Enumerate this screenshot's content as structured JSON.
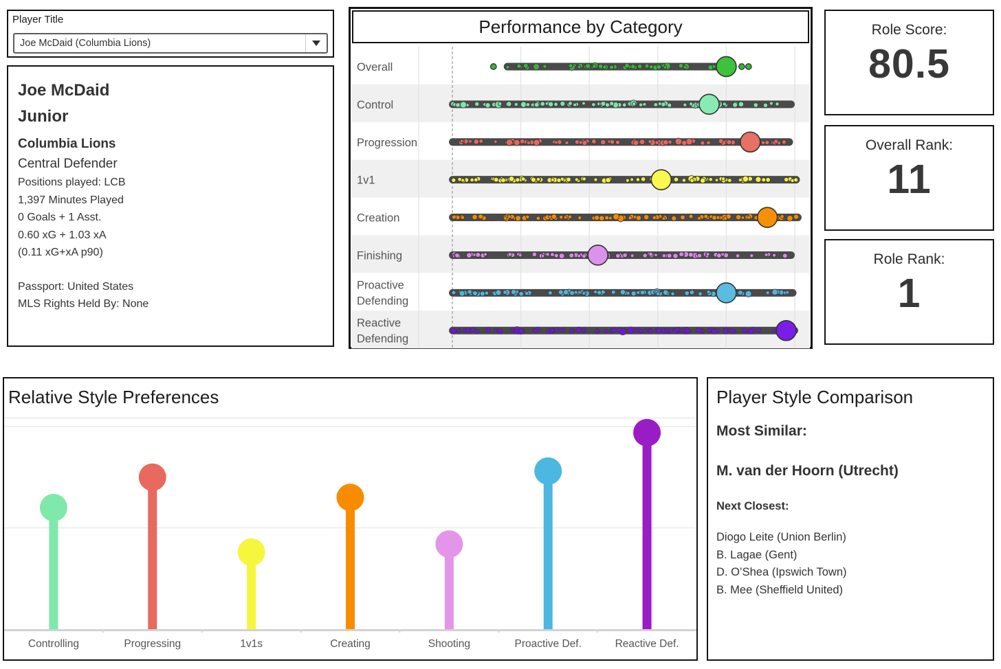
{
  "filter": {
    "label": "Player Title",
    "value": "Joe McDaid (Columbia Lions)"
  },
  "player": {
    "name_line1": "Joe McDaid",
    "name_line2": "Junior",
    "team": "Columbia Lions",
    "role": "Central Defender",
    "details": [
      "Positions played: LCB",
      "1,397 Minutes Played",
      "0 Goals + 1 Asst.",
      "0.60 xG + 1.03 xA",
      "(0.11 xG+xA p90)"
    ],
    "extra": [
      "Passport: United States",
      "MLS Rights Held By: None"
    ]
  },
  "kpis": [
    {
      "label": "Role Score:",
      "value": "80.5"
    },
    {
      "label": "Overall Rank:",
      "value": "11"
    },
    {
      "label": "Role Rank:",
      "value": "1"
    }
  ],
  "style_comparison": {
    "title": "Player Style Comparison",
    "most_similar_label": "Most Similar:",
    "most_similar": "M. van der Hoorn (Utrecht)",
    "next_label": "Next Closest:",
    "next_list": [
      "Diogo Leite (Union Berlin)",
      "B. Lagae (Gent)",
      "D. O’Shea (Ipswich Town)",
      "B. Mee (Sheffield United)"
    ]
  },
  "chart_data": [
    {
      "id": "performance",
      "type": "strip",
      "title": "Performance by Category",
      "axis": {
        "min": 0,
        "max": 100,
        "gridline_step": 20,
        "reference_line_value": 0,
        "reference_line_style": "dashed",
        "tick_labels_visible": false
      },
      "legend": "large dot = selected player score, small dots = all players distribution",
      "rows": [
        {
          "label_lines": [
            "Overall"
          ],
          "dot_color": "#3ab43a",
          "player_color": "#3cc23c",
          "player_value": 80,
          "strip_min": 16,
          "strip_max": 77.5,
          "outliers": [
            12,
            84.5,
            86.5
          ],
          "dot_count": 55
        },
        {
          "label_lines": [
            "Control"
          ],
          "dot_color": "#7fe3a8",
          "player_color": "#88ebb1",
          "player_value": 75,
          "strip_min": 0,
          "strip_max": 99,
          "outliers": [],
          "dot_count": 92
        },
        {
          "label_lines": [
            "Progression"
          ],
          "dot_color": "#e3685d",
          "player_color": "#e97064",
          "player_value": 87,
          "strip_min": 0,
          "strip_max": 98.5,
          "outliers": [],
          "dot_count": 92
        },
        {
          "label_lines": [
            "1v1"
          ],
          "dot_color": "#f0f03c",
          "player_color": "#f8f84e",
          "player_value": 61,
          "strip_min": 0,
          "strip_max": 100.5,
          "outliers": [],
          "dot_count": 92
        },
        {
          "label_lines": [
            "Creation"
          ],
          "dot_color": "#f48a00",
          "player_color": "#f89007",
          "player_value": 92,
          "strip_min": 0,
          "strip_max": 101,
          "outliers": [],
          "dot_count": 92
        },
        {
          "label_lines": [
            "Finishing"
          ],
          "dot_color": "#d689e3",
          "player_color": "#dc92ea",
          "player_value": 42.5,
          "strip_min": 0,
          "strip_max": 99,
          "outliers": [],
          "dot_count": 92
        },
        {
          "label_lines": [
            "Proactive",
            "Defending"
          ],
          "dot_color": "#52b4da",
          "player_color": "#5bbce2",
          "player_value": 80,
          "strip_min": 0,
          "strip_max": 99.5,
          "outliers": [],
          "dot_count": 92
        },
        {
          "label_lines": [
            "Reactive",
            "Defending"
          ],
          "dot_color": "#6f16dd",
          "player_color": "#7b1de9",
          "player_value": 97.5,
          "strip_min": 0,
          "strip_max": 100,
          "outliers": [],
          "dot_count": 92
        }
      ]
    },
    {
      "id": "style_prefs",
      "type": "lollipop",
      "title": "Relative Style Preferences",
      "categories": [
        "Controlling",
        "Progressing",
        "1v1s",
        "Creating",
        "Shooting",
        "Proactive Def.",
        "Reactive Def."
      ],
      "values": [
        0.6,
        0.75,
        0.38,
        0.65,
        0.42,
        0.78,
        0.97
      ],
      "colors": [
        "#7fe9a9",
        "#e8695e",
        "#f6f63f",
        "#f88c00",
        "#e295e9",
        "#4cb7e0",
        "#9a1cc4"
      ],
      "ylim": [
        0,
        1.05
      ],
      "gridlines": [
        0.5,
        1.0
      ],
      "baseline": 0,
      "tick_labels_visible": false
    }
  ]
}
